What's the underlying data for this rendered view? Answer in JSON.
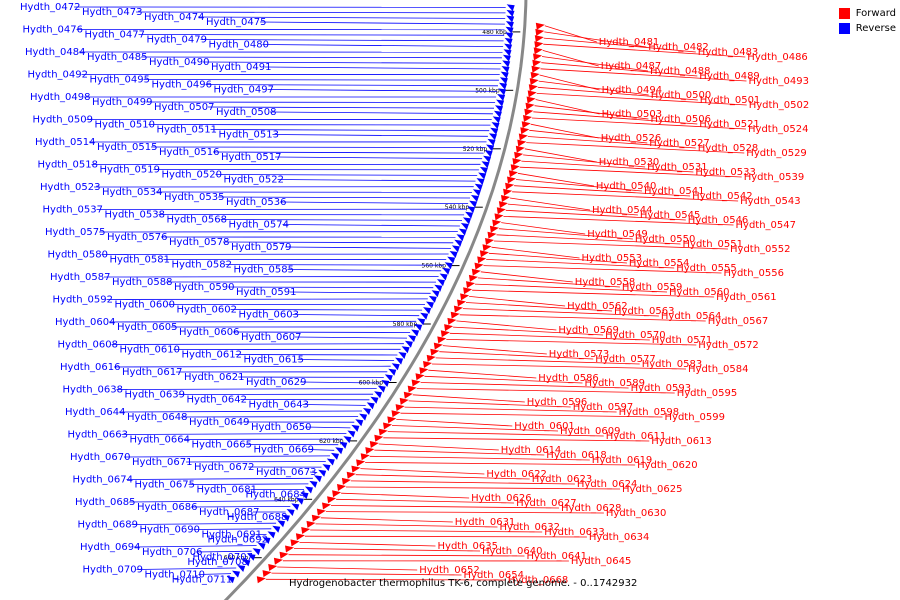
{
  "title": "Hydrogenobacter thermophilus TK-6, complete genome. - 0..1742932",
  "legend": [
    {
      "label": "Forward",
      "color": "#ff0000"
    },
    {
      "label": "Reverse",
      "color": "#0000ff"
    }
  ],
  "colors": {
    "forward": "#ff0000",
    "reverse": "#0000ff",
    "backbone": "#888888"
  },
  "ticks": [
    "480 kbp",
    "500 kbp",
    "520 kbp",
    "540 kbp",
    "560 kbp",
    "580 kbp",
    "600 kbp",
    "620 kbp",
    "640 kbp",
    "660 kbp"
  ],
  "reverse_genes": [
    "Hydth_0472",
    "Hydth_0473",
    "Hydth_0474",
    "Hydth_0475",
    "Hydth_0476",
    "Hydth_0477",
    "Hydth_0479",
    "Hydth_0480",
    "Hydth_0484",
    "Hydth_0485",
    "Hydth_0490",
    "Hydth_0491",
    "Hydth_0492",
    "Hydth_0495",
    "Hydth_0496",
    "Hydth_0497",
    "Hydth_0498",
    "Hydth_0499",
    "Hydth_0507",
    "Hydth_0508",
    "Hydth_0509",
    "Hydth_0510",
    "Hydth_0511",
    "Hydth_0513",
    "Hydth_0514",
    "Hydth_0515",
    "Hydth_0516",
    "Hydth_0517",
    "Hydth_0518",
    "Hydth_0519",
    "Hydth_0520",
    "Hydth_0522",
    "Hydth_0523",
    "Hydth_0534",
    "Hydth_0535",
    "Hydth_0536",
    "Hydth_0537",
    "Hydth_0538",
    "Hydth_0568",
    "Hydth_0574",
    "Hydth_0575",
    "Hydth_0576",
    "Hydth_0578",
    "Hydth_0579",
    "Hydth_0580",
    "Hydth_0581",
    "Hydth_0582",
    "Hydth_0585",
    "Hydth_0587",
    "Hydth_0588",
    "Hydth_0590",
    "Hydth_0591",
    "Hydth_0592",
    "Hydth_0600",
    "Hydth_0602",
    "Hydth_0603",
    "Hydth_0604",
    "Hydth_0605",
    "Hydth_0606",
    "Hydth_0607",
    "Hydth_0608",
    "Hydth_0610",
    "Hydth_0612",
    "Hydth_0615",
    "Hydth_0616",
    "Hydth_0617",
    "Hydth_0621",
    "Hydth_0629",
    "Hydth_0638",
    "Hydth_0639",
    "Hydth_0642",
    "Hydth_0643",
    "Hydth_0644",
    "Hydth_0648",
    "Hydth_0649",
    "Hydth_0650",
    "Hydth_0663",
    "Hydth_0664",
    "Hydth_0665",
    "Hydth_0669",
    "Hydth_0670",
    "Hydth_0671",
    "Hydth_0672",
    "Hydth_0673",
    "Hydth_0674",
    "Hydth_0675",
    "Hydth_0681",
    "Hydth_0684",
    "Hydth_0685",
    "Hydth_0686",
    "Hydth_0687",
    "Hydth_0688",
    "Hydth_0689",
    "Hydth_0690",
    "Hydth_0691",
    "Hydth_0692",
    "Hydth_0694",
    "Hydth_0706",
    "Hydth_0707",
    "Hydth_0708",
    "Hydth_0709",
    "Hydth_0710",
    "Hydth_0711"
  ],
  "forward_genes": [
    "Hydth_0481",
    "Hydth_0482",
    "Hydth_0483",
    "Hydth_0486",
    "Hydth_0487",
    "Hydth_0488",
    "Hydth_0489",
    "Hydth_0493",
    "Hydth_0494",
    "Hydth_0500",
    "Hydth_0501",
    "Hydth_0502",
    "Hydth_0503",
    "Hydth_0506",
    "Hydth_0521",
    "Hydth_0524",
    "Hydth_0526",
    "Hydth_0527",
    "Hydth_0528",
    "Hydth_0529",
    "Hydth_0530",
    "Hydth_0531",
    "Hydth_0533",
    "Hydth_0539",
    "Hydth_0540",
    "Hydth_0541",
    "Hydth_0542",
    "Hydth_0543",
    "Hydth_0544",
    "Hydth_0545",
    "Hydth_0546",
    "Hydth_0547",
    "Hydth_0549",
    "Hydth_0550",
    "Hydth_0551",
    "Hydth_0552",
    "Hydth_0553",
    "Hydth_0554",
    "Hydth_0555",
    "Hydth_0556",
    "Hydth_0558",
    "Hydth_0559",
    "Hydth_0560",
    "Hydth_0561",
    "Hydth_0562",
    "Hydth_0563",
    "Hydth_0564",
    "Hydth_0567",
    "Hydth_0569",
    "Hydth_0570",
    "Hydth_0571",
    "Hydth_0572",
    "Hydth_0573",
    "Hydth_0577",
    "Hydth_0583",
    "Hydth_0584",
    "Hydth_0586",
    "Hydth_0589",
    "Hydth_0593",
    "Hydth_0595",
    "Hydth_0596",
    "Hydth_0597",
    "Hydth_0598",
    "Hydth_0599",
    "Hydth_0601",
    "Hydth_0609",
    "Hydth_0611",
    "Hydth_0613",
    "Hydth_0614",
    "Hydth_0618",
    "Hydth_0619",
    "Hydth_0620",
    "Hydth_0622",
    "Hydth_0623",
    "Hydth_0624",
    "Hydth_0625",
    "Hydth_0626",
    "Hydth_0627",
    "Hydth_0628",
    "Hydth_0630",
    "Hydth_0631",
    "Hydth_0632",
    "Hydth_0633",
    "Hydth_0634",
    "Hydth_0635",
    "Hydth_0640",
    "Hydth_0641",
    "Hydth_0645",
    "Hydth_0652",
    "Hydth_0654",
    "Hydth_0668"
  ]
}
